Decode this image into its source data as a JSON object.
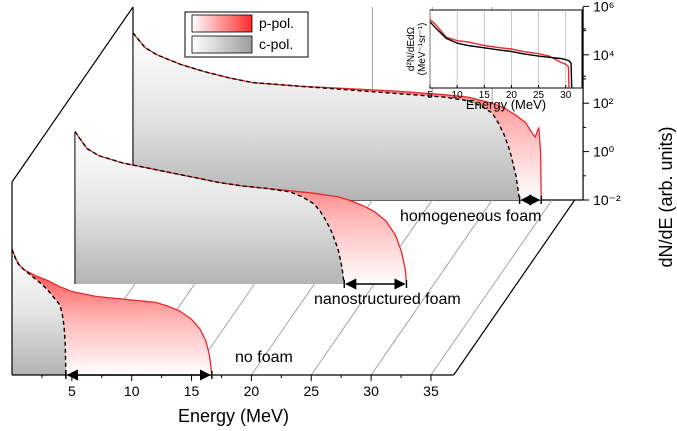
{
  "chart_data": {
    "type": "area",
    "xlabel": "Energy (MeV)",
    "ylabel": "dN/dE (arb. units)",
    "x_ticks": [
      5,
      10,
      15,
      20,
      25,
      30,
      35
    ],
    "y_ticks": [
      "10⁶",
      "10⁴",
      "10²",
      "10⁰",
      "10⁻²"
    ],
    "y_log_range": [
      -2,
      7
    ],
    "legend": [
      {
        "name": "p-pol.",
        "color": "#e8282d"
      },
      {
        "name": "c-pol.",
        "color": "#9a9a9a"
      }
    ],
    "legend_position": "top",
    "series": [
      {
        "name": "no foam",
        "p_pol_cutoff_mev": 16.7,
        "c_pol_cutoff_mev": 4.5,
        "bracket": [
          4.5,
          16.7
        ],
        "c_pol_x": [
          0,
          0.3,
          0.6,
          1.0,
          1.5,
          2.0,
          2.5,
          3.0,
          3.5,
          4.0,
          4.2,
          4.35,
          4.45,
          4.5
        ],
        "c_pol_y": [
          3.2,
          2.8,
          2.55,
          2.35,
          2.15,
          1.95,
          1.75,
          1.5,
          1.2,
          0.9,
          0.5,
          0.0,
          -0.8,
          -2.0
        ],
        "p_pol_x": [
          0,
          0.5,
          1,
          2,
          3,
          4,
          5,
          6,
          7,
          8,
          9,
          10,
          11,
          12,
          13,
          14,
          15,
          15.7,
          16.2,
          16.5,
          16.7
        ],
        "p_pol_y": [
          3.2,
          2.6,
          2.35,
          2.1,
          1.9,
          1.65,
          1.45,
          1.35,
          1.25,
          1.2,
          1.15,
          1.1,
          1.05,
          1.0,
          0.85,
          0.65,
          0.3,
          -0.1,
          -0.6,
          -1.2,
          -2.0
        ]
      },
      {
        "name": "nanostructured foam",
        "p_pol_cutoff_mev": 27.7,
        "c_pol_cutoff_mev": 22.5,
        "bracket": [
          22.5,
          27.7
        ],
        "c_pol_x": [
          0,
          1,
          2,
          4,
          6,
          8,
          10,
          12,
          14,
          16,
          18,
          19,
          20,
          20.5,
          21,
          21.5,
          22,
          22.3,
          22.5
        ],
        "c_pol_y": [
          4.3,
          3.6,
          3.3,
          3.0,
          2.8,
          2.6,
          2.4,
          2.2,
          2.05,
          1.95,
          1.8,
          1.6,
          1.3,
          1.0,
          0.6,
          0.1,
          -0.6,
          -1.3,
          -2.0
        ],
        "p_pol_x": [
          0,
          1,
          2,
          4,
          6,
          8,
          10,
          12,
          14,
          16,
          18,
          20,
          22,
          23,
          24,
          25,
          26,
          26.8,
          27.3,
          27.6,
          27.7
        ],
        "p_pol_y": [
          4.3,
          3.6,
          3.3,
          3.0,
          2.8,
          2.6,
          2.4,
          2.2,
          2.05,
          1.95,
          1.85,
          1.75,
          1.6,
          1.45,
          1.25,
          1.0,
          0.6,
          0.0,
          -0.7,
          -1.4,
          -2.0
        ]
      },
      {
        "name": "homogeneous foam",
        "p_pol_cutoff_mev": 34.1,
        "c_pol_cutoff_mev": 32.3,
        "bracket": [
          32.3,
          34.1
        ],
        "c_pol_x": [
          0,
          1,
          2,
          4,
          6,
          8,
          10,
          14,
          18,
          22,
          26,
          28,
          29,
          30,
          30.5,
          31,
          31.5,
          32,
          32.3
        ],
        "c_pol_y": [
          4.9,
          4.3,
          4.0,
          3.6,
          3.3,
          3.05,
          2.85,
          2.7,
          2.55,
          2.4,
          2.25,
          2.1,
          1.9,
          1.6,
          1.2,
          0.7,
          0.0,
          -1.0,
          -2.0
        ],
        "p_pol_x": [
          0,
          1,
          2,
          4,
          6,
          8,
          10,
          14,
          18,
          22,
          26,
          28,
          30,
          31,
          32,
          32.8,
          33.3,
          33.6,
          33.9,
          34.05,
          34.1
        ],
        "p_pol_y": [
          4.9,
          4.3,
          4.0,
          3.6,
          3.3,
          3.05,
          2.85,
          2.7,
          2.6,
          2.5,
          2.35,
          2.25,
          2.0,
          1.8,
          1.5,
          1.2,
          0.8,
          0.6,
          1.0,
          0.0,
          -2.0
        ]
      }
    ],
    "inset": {
      "ylabel": "d²N/dEdΩ (MeV⁻¹sr⁻¹)",
      "xlabel": "Energy (MeV)",
      "x_ticks": [
        5,
        10,
        15,
        20,
        25,
        30
      ],
      "y_ticks": [
        "10⁶",
        "10⁴"
      ],
      "x_range": [
        5,
        33
      ],
      "y_log_range": [
        3.5,
        6.8
      ],
      "series": [
        {
          "name": "p-pol.",
          "color": "#e8282d",
          "x": [
            5,
            6,
            8,
            10,
            12,
            15,
            18,
            20,
            22,
            25,
            27,
            29,
            30,
            30.5,
            30.6
          ],
          "y": [
            6.4,
            6.2,
            5.65,
            5.5,
            5.45,
            5.3,
            5.2,
            5.15,
            5.05,
            4.95,
            4.85,
            4.6,
            4.5,
            4.4,
            3.5
          ]
        },
        {
          "name": "c-pol.",
          "color": "#000000",
          "x": [
            5,
            6,
            8,
            10,
            12,
            15,
            18,
            20,
            22,
            25,
            27,
            29,
            30,
            30.6,
            30.8,
            31.0,
            31.1
          ],
          "y": [
            6.3,
            6.05,
            5.6,
            5.4,
            5.3,
            5.2,
            5.1,
            5.05,
            4.95,
            4.85,
            4.8,
            4.75,
            4.7,
            4.65,
            4.6,
            4.55,
            3.5
          ]
        }
      ]
    }
  },
  "labels": {
    "xlabel": "Energy (MeV)",
    "ylabel": "dN/dE (arb. units)",
    "legend_p": "p-pol.",
    "legend_c": "c-pol.",
    "label_no_foam": "no foam",
    "label_nano": "nanostructured foam",
    "label_homog": "homogeneous foam",
    "inset_xlabel": "Energy (MeV)"
  }
}
